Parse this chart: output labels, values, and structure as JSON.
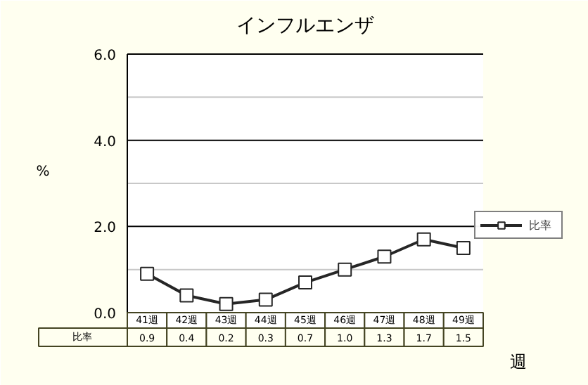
{
  "chart_data": {
    "type": "line",
    "title": "インフルエンザ",
    "ylabel": "%",
    "xlabel": "週",
    "categories": [
      "41週",
      "42週",
      "43週",
      "44週",
      "45週",
      "46週",
      "47週",
      "48週",
      "49週"
    ],
    "series": [
      {
        "name": "比率",
        "color": "#262626",
        "values": [
          0.9,
          0.4,
          0.2,
          0.3,
          0.7,
          1.0,
          1.3,
          1.7,
          1.5
        ],
        "value_labels": [
          "0.9",
          "0.4",
          "0.2",
          "0.3",
          "0.7",
          "1.0",
          "1.3",
          "1.7",
          "1.5"
        ]
      }
    ],
    "ylim": [
      0,
      6
    ],
    "yticks": [
      {
        "value": 0,
        "label": "0.0"
      },
      {
        "value": 1,
        "label": null
      },
      {
        "value": 2,
        "label": "2.0"
      },
      {
        "value": 3,
        "label": null
      },
      {
        "value": 4,
        "label": "4.0"
      },
      {
        "value": 5,
        "label": null
      },
      {
        "value": 6,
        "label": "6.0"
      }
    ],
    "grid": "y",
    "legend": "right",
    "marker": "square",
    "line_style": "solid",
    "data_labels": true
  }
}
